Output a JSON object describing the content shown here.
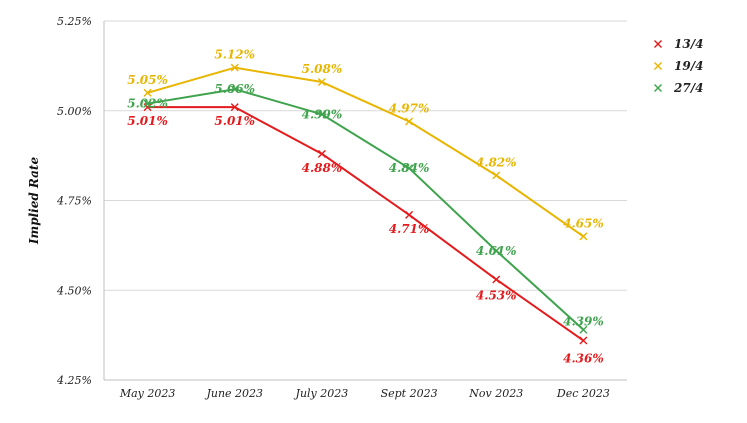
{
  "chart_data": {
    "type": "line",
    "title": "",
    "xlabel": "",
    "ylabel": "Implied Rate",
    "categories": [
      "May 2023",
      "June 2023",
      "July 2023",
      "Sept 2023",
      "Nov 2023",
      "Dec 2023"
    ],
    "ylim": [
      4.25,
      5.25
    ],
    "yticks": [
      4.25,
      4.5,
      4.75,
      5.0,
      5.25
    ],
    "ytick_labels": [
      "4.25%",
      "4.50%",
      "4.75%",
      "5.00%",
      "5.25%"
    ],
    "grid": true,
    "legend_position": "top-right",
    "marker": "x",
    "series": [
      {
        "name": "13/4",
        "color": "#e41a1c",
        "values": [
          5.01,
          5.01,
          4.88,
          4.71,
          4.53,
          4.36
        ],
        "labels": [
          "5.01%",
          "5.01%",
          "4.88%",
          "4.71%",
          "4.53%",
          "4.36%"
        ]
      },
      {
        "name": "19/4",
        "color": "#e8b500",
        "values": [
          5.05,
          5.12,
          5.08,
          4.97,
          4.82,
          4.65
        ],
        "labels": [
          "5.05%",
          "5.12%",
          "5.08%",
          "4.97%",
          "4.82%",
          "4.65%"
        ]
      },
      {
        "name": "27/4",
        "color": "#3fa34d",
        "values": [
          5.02,
          5.06,
          4.99,
          4.84,
          4.61,
          4.39
        ],
        "labels": [
          "5.02%",
          "5.06%",
          "4.99%",
          "4.84%",
          "4.61%",
          "4.39%"
        ]
      }
    ]
  }
}
